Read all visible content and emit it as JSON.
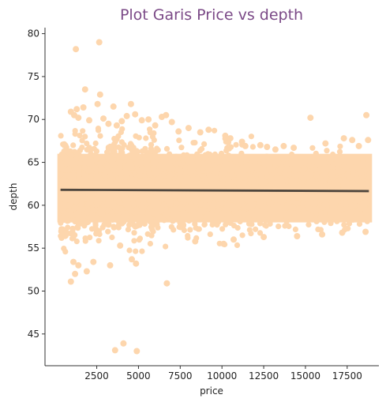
{
  "chart_data": {
    "type": "scatter",
    "title": "Plot Garis Price vs depth",
    "xlabel": "price",
    "ylabel": "depth",
    "xlim": [
      -600,
      19400
    ],
    "ylim": [
      41.3,
      80.7
    ],
    "xticks": [
      2500,
      5000,
      7500,
      10000,
      12500,
      15000,
      17500
    ],
    "xtick_labels": [
      "2500",
      "5000",
      "7500",
      "10000",
      "12500",
      "15000",
      "17500"
    ],
    "yticks": [
      45,
      50,
      55,
      60,
      65,
      70,
      75,
      80
    ],
    "ytick_labels": [
      "45",
      "50",
      "55",
      "60",
      "65",
      "70",
      "75",
      "80"
    ],
    "grid": false,
    "legend": "none",
    "point_color": "#fdd6ad",
    "line_color": "#4f473e",
    "title_color": "#7b4a87",
    "dense_band": {
      "x_range": [
        330,
        18800
      ],
      "core_y": [
        58,
        66
      ],
      "spread_y": [
        55,
        69
      ]
    },
    "regression_line": {
      "x": [
        330,
        18800
      ],
      "y": [
        61.8,
        61.65
      ]
    },
    "series": [
      {
        "x": [
          1250,
          2650,
          1800,
          2700,
          950,
          1300,
          2550,
          1400,
          1700,
          2050,
          1150,
          2900,
          3500,
          4000,
          4550,
          4800,
          3200,
          3700,
          4300,
          5200,
          5600,
          6000,
          6400,
          6650,
          7000,
          7400,
          8000,
          8700,
          9200,
          10200,
          10500,
          11200,
          11400,
          12300,
          12700,
          13200,
          13700,
          14300,
          15300,
          16200,
          17300,
          17800,
          18200,
          18650,
          18750,
          1100,
          1400,
          950,
          1900,
          2300,
          1200,
          3300,
          3900,
          4600,
          4850,
          6700,
          8400,
          10100,
          10700,
          12500,
          14500,
          16000,
          17200,
          18600,
          3600,
          4100,
          4900
        ],
        "y": [
          78.2,
          79.0,
          73.5,
          72.9,
          70.9,
          71.2,
          71.8,
          70.2,
          71.4,
          69.9,
          70.5,
          70.1,
          71.5,
          69.8,
          71.8,
          70.6,
          69.5,
          69.3,
          70.4,
          69.9,
          70.0,
          69.3,
          70.3,
          70.5,
          69.7,
          68.6,
          69.0,
          68.5,
          68.8,
          68.1,
          67.8,
          67.4,
          66.9,
          67.0,
          66.8,
          66.5,
          66.9,
          66.7,
          70.2,
          67.2,
          67.8,
          67.6,
          66.9,
          70.5,
          67.6,
          53.4,
          53.0,
          51.1,
          52.3,
          53.4,
          52.0,
          53.0,
          55.3,
          53.7,
          53.2,
          50.9,
          55.8,
          55.5,
          56.0,
          56.3,
          56.4,
          56.6,
          56.8,
          56.9,
          43.1,
          43.9,
          43.0
        ]
      }
    ]
  }
}
